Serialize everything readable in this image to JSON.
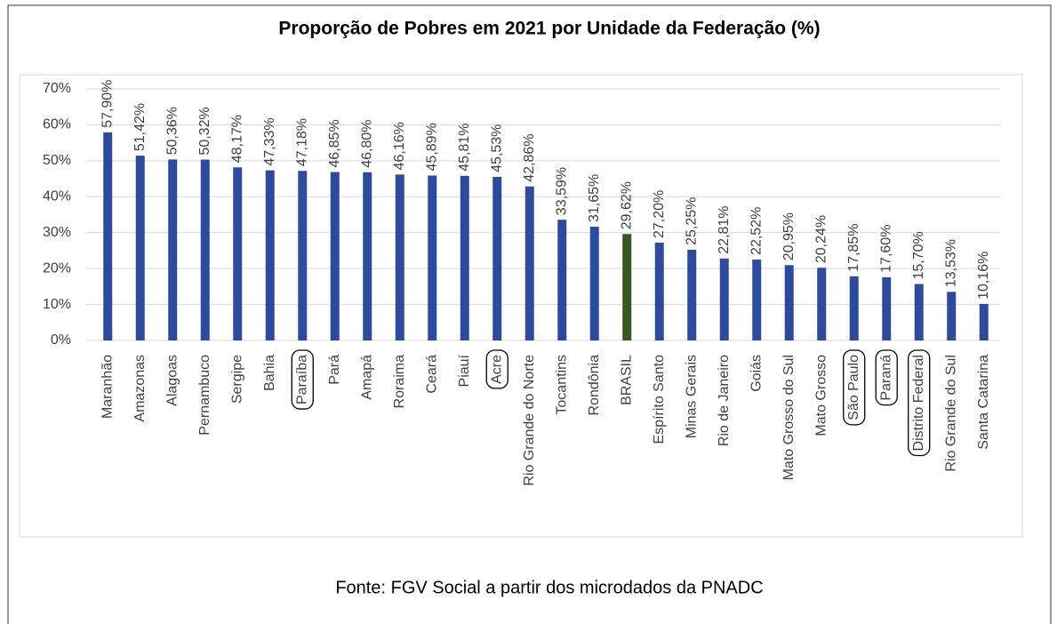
{
  "chart_data": {
    "type": "bar",
    "title": "Proporção de Pobres em 2021 por Unidade da Federação (%)",
    "categories": [
      "Maranhão",
      "Amazonas",
      "Alagoas",
      "Pernambuco",
      "Sergipe",
      "Bahia",
      "Paraíba",
      "Pará",
      "Amapá",
      "Roraima",
      "Ceará",
      "Piauí",
      "Acre",
      "Rio Grande do Norte",
      "Tocantins",
      "Rondônia",
      "BRASIL",
      "Espírito Santo",
      "Minas Gerais",
      "Rio de Janeiro",
      "Goiás",
      "Mato Grosso do Sul",
      "Mato Grosso",
      "São Paulo",
      "Paraná",
      "Distrito Federal",
      "Rio Grande do Sul",
      "Santa Catarina"
    ],
    "values": [
      57.9,
      51.42,
      50.36,
      50.32,
      48.17,
      47.33,
      47.18,
      46.85,
      46.8,
      46.16,
      45.89,
      45.81,
      45.53,
      42.86,
      33.59,
      31.65,
      29.62,
      27.2,
      25.25,
      22.81,
      22.52,
      20.95,
      20.24,
      17.85,
      17.6,
      15.7,
      13.53,
      10.16
    ],
    "value_labels": [
      "57,90%",
      "51,42%",
      "50,36%",
      "50,32%",
      "48,17%",
      "47,33%",
      "47,18%",
      "46,85%",
      "46,80%",
      "46,16%",
      "45,89%",
      "45,81%",
      "45,53%",
      "42,86%",
      "33,59%",
      "31,65%",
      "29,62%",
      "27,20%",
      "25,25%",
      "22,81%",
      "22,52%",
      "20,95%",
      "20,24%",
      "17,85%",
      "17,60%",
      "15,70%",
      "13,53%",
      "10,16%"
    ],
    "colors": [
      "#2e4a9b",
      "#2e4a9b",
      "#2e4a9b",
      "#2e4a9b",
      "#2e4a9b",
      "#2e4a9b",
      "#2e4a9b",
      "#2e4a9b",
      "#2e4a9b",
      "#2e4a9b",
      "#2e4a9b",
      "#2e4a9b",
      "#2e4a9b",
      "#2e4a9b",
      "#2e4a9b",
      "#2e4a9b",
      "#375623",
      "#2e4a9b",
      "#2e4a9b",
      "#2e4a9b",
      "#2e4a9b",
      "#2e4a9b",
      "#2e4a9b",
      "#2e4a9b",
      "#2e4a9b",
      "#2e4a9b",
      "#2e4a9b",
      "#2e4a9b"
    ],
    "boxed": [
      false,
      false,
      false,
      false,
      false,
      false,
      true,
      false,
      false,
      false,
      false,
      false,
      true,
      false,
      false,
      false,
      false,
      false,
      false,
      false,
      false,
      false,
      false,
      true,
      true,
      true,
      false,
      false
    ],
    "ylim": [
      0,
      70
    ],
    "yticks": [
      {
        "value": 0,
        "label": "0%"
      },
      {
        "value": 10,
        "label": "10%"
      },
      {
        "value": 20,
        "label": "20%"
      },
      {
        "value": 30,
        "label": "30%"
      },
      {
        "value": 40,
        "label": "40%"
      },
      {
        "value": 50,
        "label": "50%"
      },
      {
        "value": 60,
        "label": "60%"
      },
      {
        "value": 70,
        "label": "70%"
      }
    ],
    "grid": true,
    "source": "Fonte: FGV Social a partir dos microdados da PNADC"
  }
}
